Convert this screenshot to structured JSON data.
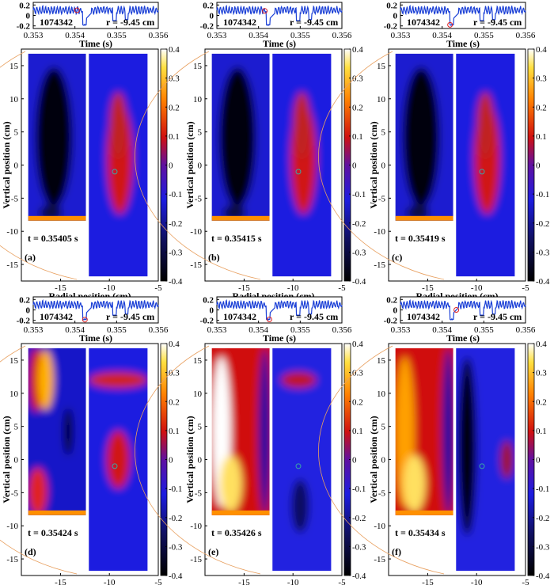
{
  "figure": {
    "shot": "1074342",
    "radius_label": "r = -9.45 cm",
    "trace_xlabel": "Time (s)",
    "trace_xticks": [
      "0.353",
      "0.354",
      "0.355",
      "0.356"
    ],
    "trace_yticks": [
      "0.2",
      "0",
      "-0.2"
    ],
    "map_xlabel": "Radial position (cm)",
    "map_ylabel": "Vertical position (cm)",
    "map_xticks": [
      "-15",
      "-10",
      "-5"
    ],
    "map_yticks": [
      "15",
      "10",
      "5",
      "0",
      "-5",
      "-10",
      "-15"
    ],
    "colorbar_ticks": [
      "0.4",
      "0.3",
      "0.2",
      "0.1",
      "0",
      "-0.1",
      "-0.2",
      "-0.3",
      "-0.4"
    ],
    "colors": {
      "trace_line": "#1a3fd6",
      "marker": "#e02020",
      "probe_circle": "#3aa6a6",
      "boundary_arc": "#e8a060"
    }
  },
  "panels": [
    {
      "label": "(a)",
      "time_label": "t = 0.35405 s",
      "marker_time": 0.35405,
      "left_pattern": "negative",
      "right_pattern": "center-red"
    },
    {
      "label": "(b)",
      "time_label": "t = 0.35415 s",
      "marker_time": 0.35415,
      "left_pattern": "negative",
      "right_pattern": "center-red"
    },
    {
      "label": "(c)",
      "time_label": "t = 0.35419 s",
      "marker_time": 0.35419,
      "left_pattern": "negative",
      "right_pattern": "center-red"
    },
    {
      "label": "(d)",
      "time_label": "t = 0.35424 s",
      "marker_time": 0.35424,
      "left_pattern": "mixed",
      "right_pattern": "upper-red"
    },
    {
      "label": "(e)",
      "time_label": "t = 0.35426 s",
      "marker_time": 0.35426,
      "left_pattern": "positive",
      "right_pattern": "blue"
    },
    {
      "label": "(f)",
      "time_label": "t = 0.35434 s",
      "marker_time": 0.35434,
      "left_pattern": "positive",
      "right_pattern": "dark"
    }
  ]
}
